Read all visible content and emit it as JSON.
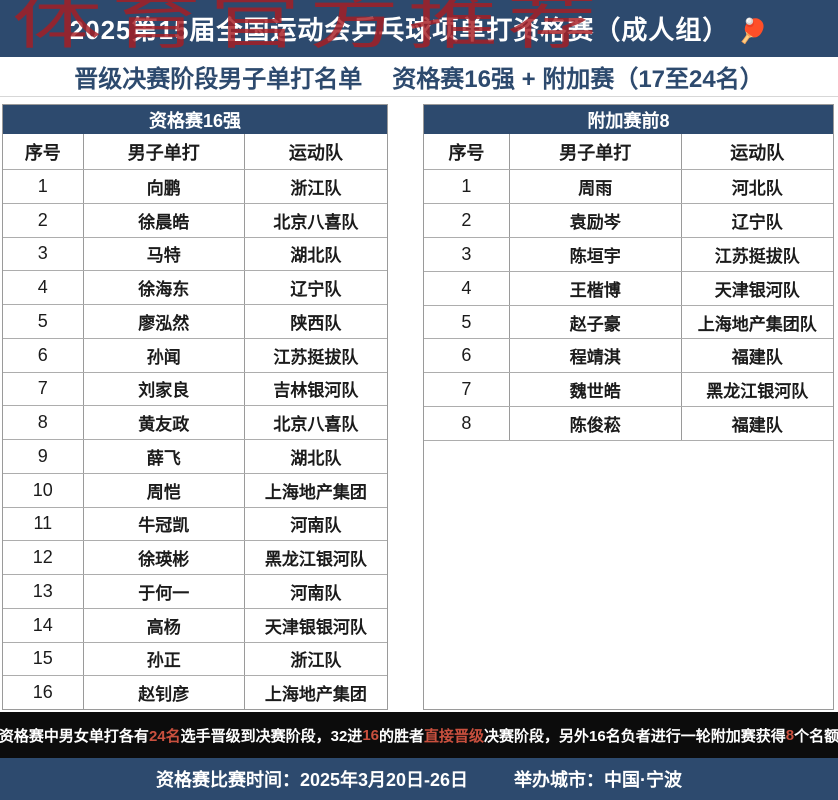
{
  "colors": {
    "navy": "#2d4a6e",
    "note_bg": "#0c0c0c",
    "accent_red": "#c9503e",
    "watermark_red": "#a71d23",
    "border_gray": "#9a9a9a"
  },
  "watermark": {
    "text": "体育官方推荐"
  },
  "header": {
    "title": "2025第15届全国运动会乒乓球项单打资格赛（成人组）",
    "paddle_icon": "🏓"
  },
  "subheader": {
    "part1": "晋级决赛阶段男子单打名单",
    "part2": "资格赛16强 + 附加赛（17至24名）"
  },
  "tables": [
    {
      "title": "资格赛16强",
      "columns": [
        "序号",
        "男子单打",
        "运动队"
      ],
      "rows": [
        [
          "1",
          "向鹏",
          "浙江队"
        ],
        [
          "2",
          "徐晨皓",
          "北京八喜队"
        ],
        [
          "3",
          "马特",
          "湖北队"
        ],
        [
          "4",
          "徐海东",
          "辽宁队"
        ],
        [
          "5",
          "廖泓然",
          "陕西队"
        ],
        [
          "6",
          "孙闻",
          "江苏挺拔队"
        ],
        [
          "7",
          "刘家良",
          "吉林银河队"
        ],
        [
          "8",
          "黄友政",
          "北京八喜队"
        ],
        [
          "9",
          "薛飞",
          "湖北队"
        ],
        [
          "10",
          "周恺",
          "上海地产集团"
        ],
        [
          "11",
          "牛冠凯",
          "河南队"
        ],
        [
          "12",
          "徐瑛彬",
          "黑龙江银河队"
        ],
        [
          "13",
          "于何一",
          "河南队"
        ],
        [
          "14",
          "高杨",
          "天津银银河队"
        ],
        [
          "15",
          "孙正",
          "浙江队"
        ],
        [
          "16",
          "赵钊彦",
          "上海地产集团"
        ]
      ]
    },
    {
      "title": "附加赛前8",
      "columns": [
        "序号",
        "男子单打",
        "运动队"
      ],
      "rows": [
        [
          "1",
          "周雨",
          "河北队"
        ],
        [
          "2",
          "袁励岑",
          "辽宁队"
        ],
        [
          "3",
          "陈垣宇",
          "江苏挺拔队"
        ],
        [
          "4",
          "王楷博",
          "天津银河队"
        ],
        [
          "5",
          "赵子豪",
          "上海地产集团队"
        ],
        [
          "6",
          "程靖淇",
          "福建队"
        ],
        [
          "7",
          "魏世皓",
          "黑龙江银河队"
        ],
        [
          "8",
          "陈俊菘",
          "福建队"
        ]
      ]
    }
  ],
  "note": {
    "segments": [
      {
        "text": "资格赛中男女单打各有",
        "red": false
      },
      {
        "text": "24名",
        "red": true
      },
      {
        "text": "选手晋级到决赛阶段，32进",
        "red": false
      },
      {
        "text": "16",
        "red": true
      },
      {
        "text": "的胜者",
        "red": false
      },
      {
        "text": "直接晋级",
        "red": true
      },
      {
        "text": "决赛阶段，另外16名负者进行一轮附加赛获得",
        "red": false
      },
      {
        "text": "8",
        "red": true
      },
      {
        "text": "个名额",
        "red": false
      }
    ]
  },
  "footer": {
    "time": "资格赛比赛时间：2025年3月20日-26日",
    "city": "举办城市：中国·宁波"
  }
}
